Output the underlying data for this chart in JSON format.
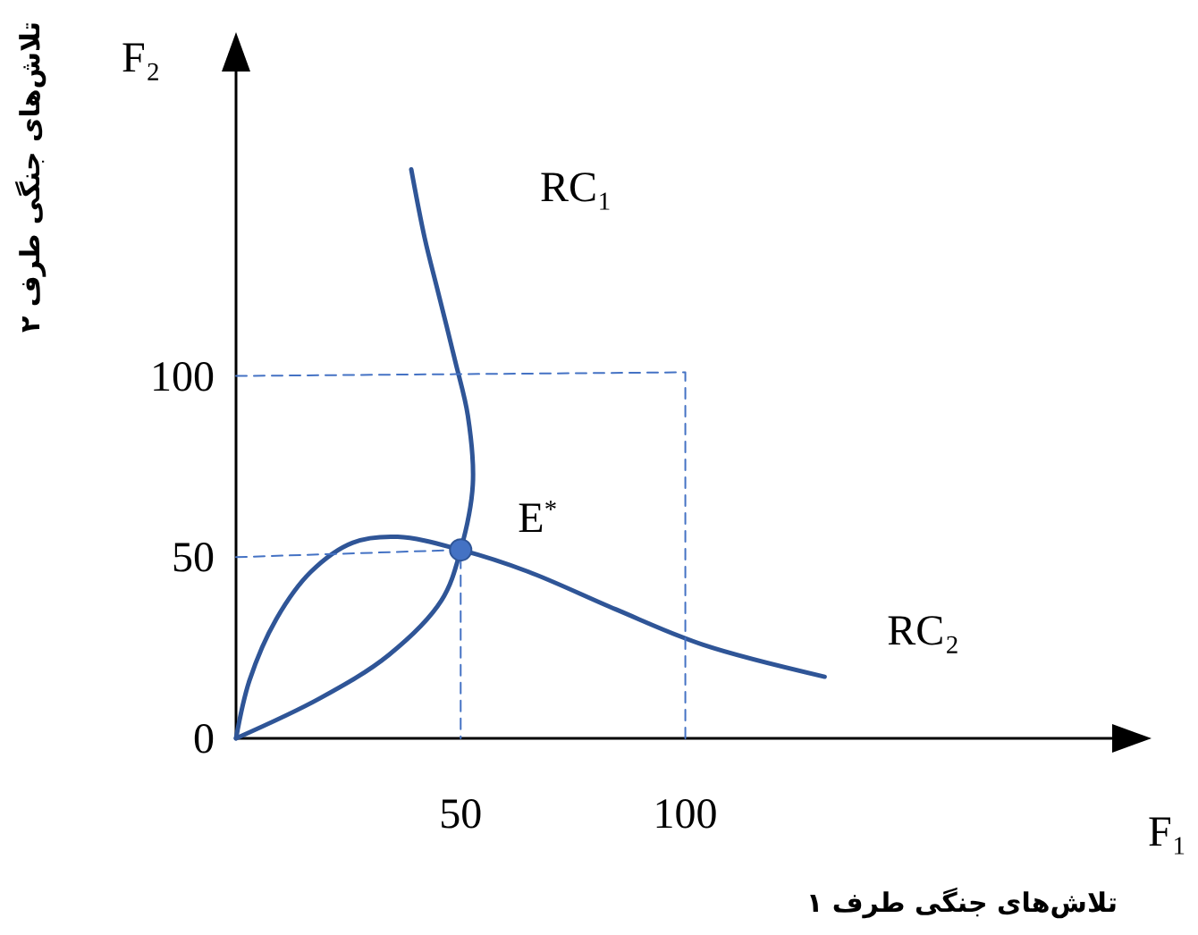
{
  "chart_data": {
    "type": "line",
    "xlabel": "F₁",
    "ylabel": "F₂",
    "xlim": [
      0,
      195
    ],
    "ylim": [
      0,
      184
    ],
    "xticks": [
      50,
      100
    ],
    "yticks": [
      0,
      50,
      100
    ],
    "series": [
      {
        "name": "RC₁",
        "color": "#2f5597",
        "x": [
          0,
          18.6,
          34,
          45.7,
          50,
          52.7,
          51.6,
          48.8,
          45,
          42,
          39
        ],
        "values": [
          0,
          11,
          23,
          38,
          52,
          70,
          89,
          104,
          123,
          138,
          157
        ]
      },
      {
        "name": "RC₂",
        "color": "#2f5597",
        "x": [
          0,
          3,
          9,
          16.7,
          26,
          36,
          50,
          65,
          84.5,
          104,
          131
        ],
        "values": [
          0,
          16,
          33,
          46,
          54,
          55.6,
          52,
          46,
          35.6,
          25.8,
          17
        ]
      },
      {
        "color": "#4472c4",
        "line_style": "dashed",
        "x": [
          0,
          50,
          50
        ],
        "values": [
          50,
          52,
          0
        ]
      },
      {
        "color": "#4472c4",
        "line_style": "dashed",
        "x": [
          0,
          100,
          100
        ],
        "values": [
          100,
          101,
          0
        ]
      },
      {
        "type": "scatter",
        "marker": "circle",
        "color": "#4472c4",
        "x": [
          50
        ],
        "values": [
          52
        ]
      }
    ],
    "annotations": [
      {
        "text": "E$^{*}$",
        "x": 50,
        "y": 52
      },
      "تلاش‌های جنگی طرف ۱",
      "تلاش‌های جنگی طرف ۲"
    ]
  }
}
